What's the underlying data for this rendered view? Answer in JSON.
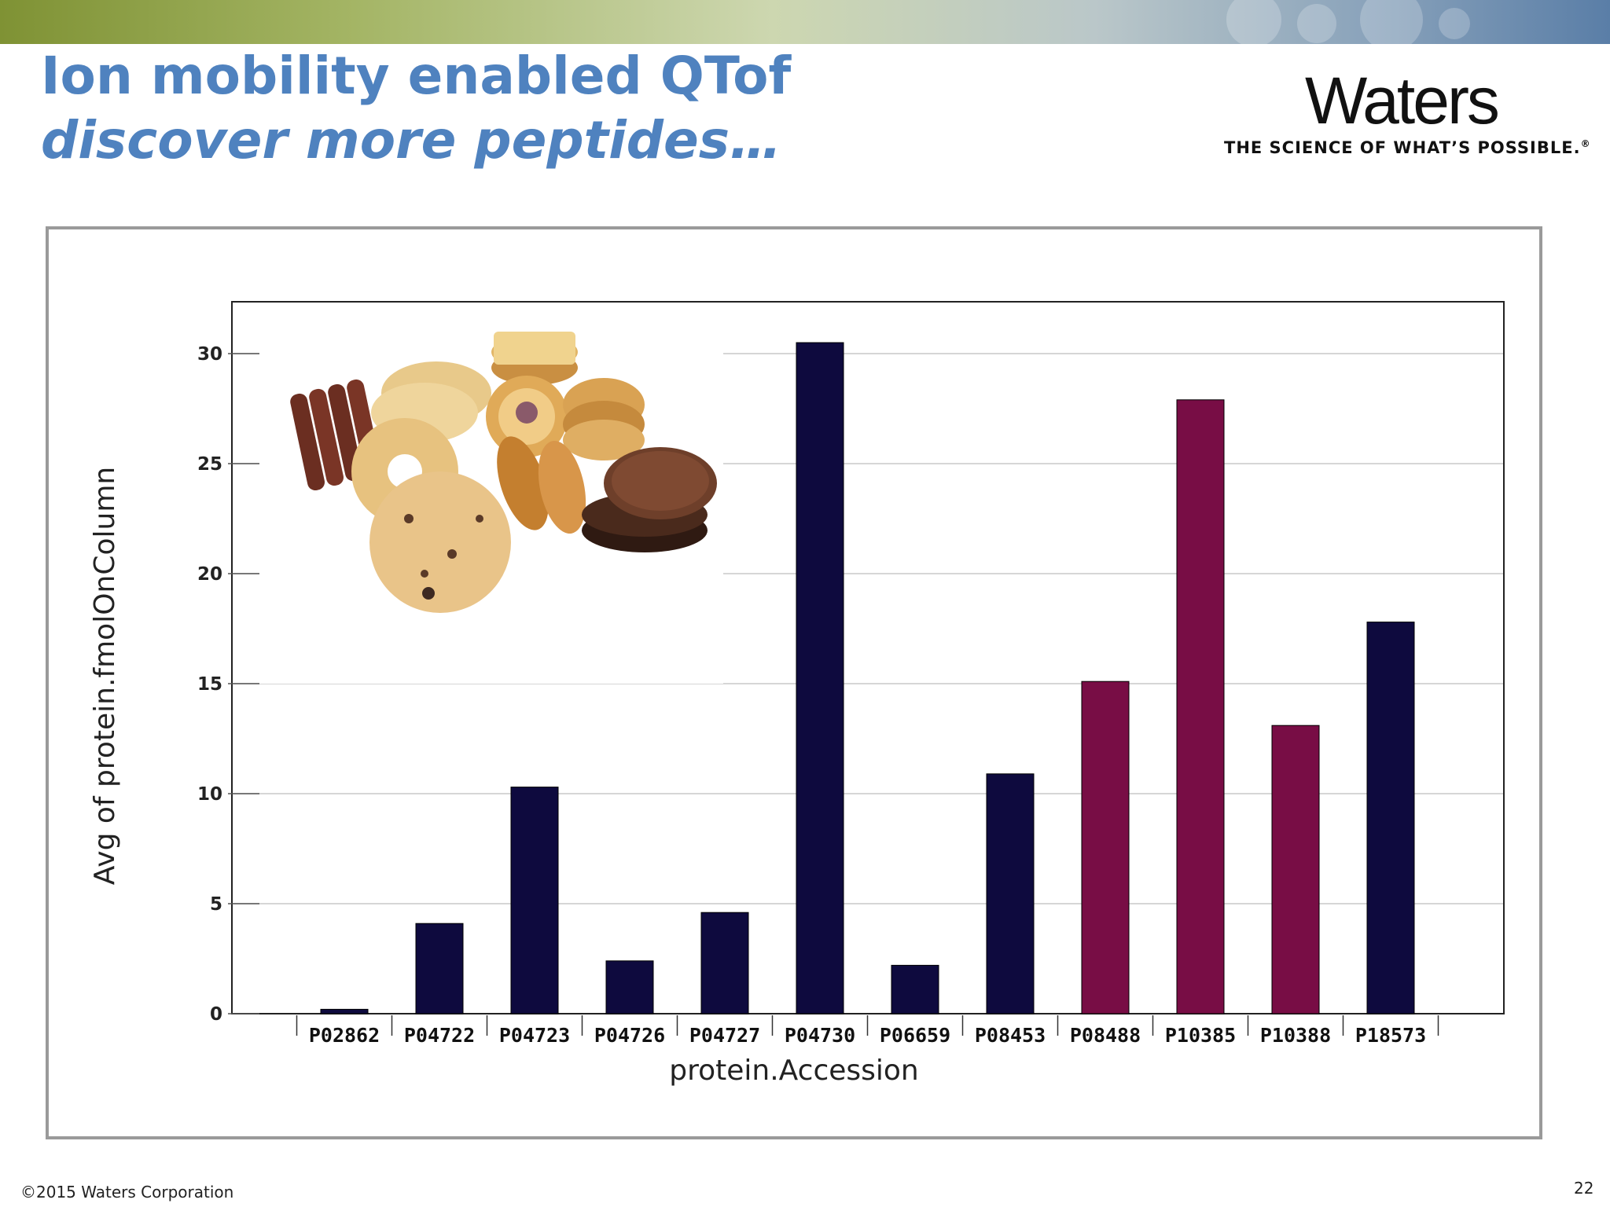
{
  "slide": {
    "title_line1": "Ion mobility enabled QTof",
    "title_line2": "discover more peptides…",
    "logo_word": "Waters",
    "logo_tagline": "THE SCIENCE OF WHAT’S POSSIBLE.",
    "logo_registered": "®",
    "copyright": "©2015 Waters Corporation",
    "page_number": "22"
  },
  "colors": {
    "title": "#4f82bf",
    "bar_navy": "#0e0a3e",
    "bar_maroon": "#780d45",
    "frame": "#9a9a9a",
    "grid": "#c8c8c8"
  },
  "image": {
    "name": "biscuits-photo",
    "subject": "assorted biscuits and cookies"
  },
  "chart_data": {
    "type": "bar",
    "xlabel": "protein.Accession",
    "ylabel": "Avg of protein.fmolOnColumn",
    "ylim": [
      0,
      30
    ],
    "yticks": [
      0,
      5,
      10,
      15,
      20,
      25,
      30
    ],
    "grid": true,
    "categories": [
      "P02862",
      "P04722",
      "P04723",
      "P04726",
      "P04727",
      "P04730",
      "P06659",
      "P08453",
      "P08488",
      "P10385",
      "P10388",
      "P18573"
    ],
    "values": [
      0.2,
      4.1,
      10.3,
      2.4,
      4.6,
      30.5,
      2.2,
      10.9,
      15.1,
      27.9,
      13.1,
      17.8
    ],
    "bar_colors": [
      "#0e0a3e",
      "#0e0a3e",
      "#0e0a3e",
      "#0e0a3e",
      "#0e0a3e",
      "#0e0a3e",
      "#0e0a3e",
      "#0e0a3e",
      "#780d45",
      "#780d45",
      "#780d45",
      "#0e0a3e"
    ]
  }
}
